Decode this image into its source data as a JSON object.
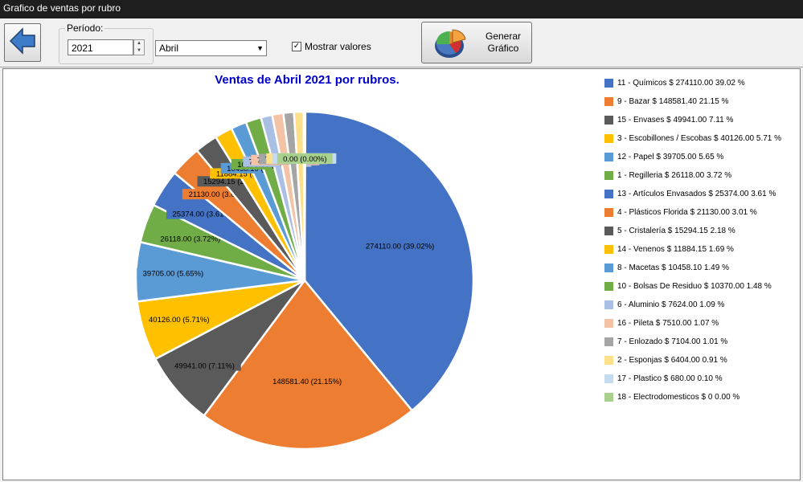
{
  "window": {
    "title": "Grafico de ventas por rubro"
  },
  "toolbar": {
    "period_label": "Período:",
    "year": "2021",
    "month": "Abril",
    "show_values_label": "Mostrar valores",
    "show_values_checked": true,
    "generate_label": "Generar\nGráfico"
  },
  "chart_data": {
    "type": "pie",
    "title": "Ventas de Abril 2021 por rubros.",
    "slices": [
      {
        "legend": "11 - Químicos  $ 274110.00  39.02 %",
        "value": 274110.0,
        "pct": 39.02,
        "label": "274110.00 (39.02%)",
        "color": "#4472c4"
      },
      {
        "legend": "9 - Bazar  $ 148581.40  21.15 %",
        "value": 148581.4,
        "pct": 21.15,
        "label": "148581.40 (21.15%)",
        "color": "#ed7d31"
      },
      {
        "legend": "15 - Envases  $ 49941.00  7.11 %",
        "value": 49941.0,
        "pct": 7.11,
        "label": "49941.00 (7.11%)",
        "color": "#5a5a5a"
      },
      {
        "legend": "3 - Escobillones / Escobas  $ 40126.00  5.71 %",
        "value": 40126.0,
        "pct": 5.71,
        "label": "40126.00 (5.71%)",
        "color": "#ffc000"
      },
      {
        "legend": "12 - Papel  $ 39705.00  5.65 %",
        "value": 39705.0,
        "pct": 5.65,
        "label": "39705.00 (5.65%)",
        "color": "#5b9bd5"
      },
      {
        "legend": "1 - Regilleria  $ 26118.00  3.72 %",
        "value": 26118.0,
        "pct": 3.72,
        "label": "26118.00 (3.72%)",
        "color": "#70ad47"
      },
      {
        "legend": "13 - Artículos Envasados  $ 25374.00  3.61 %",
        "value": 25374.0,
        "pct": 3.61,
        "label": "25374.00 (3.61%)",
        "color": "#4472c4"
      },
      {
        "legend": "4 - Plásticos Florida  $ 21130.00  3.01 %",
        "value": 21130.0,
        "pct": 3.01,
        "label": "21130.00 (3.01%)",
        "color": "#ed7d31"
      },
      {
        "legend": "5 - Cristalería  $ 15294.15  2.18 %",
        "value": 15294.15,
        "pct": 2.18,
        "label": "15294.15 (2.18%)",
        "color": "#5a5a5a"
      },
      {
        "legend": "14 - Venenos  $ 11884.15  1.69 %",
        "value": 11884.15,
        "pct": 1.69,
        "label": "11884.15 (1.69%)",
        "color": "#ffc000"
      },
      {
        "legend": "8 - Macetas  $ 10458.10  1.49 %",
        "value": 10458.1,
        "pct": 1.49,
        "label": "10458.10 (1.49%)",
        "color": "#5b9bd5"
      },
      {
        "legend": "10 - Bolsas De Residuo  $ 10370.00  1.48 %",
        "value": 10370.0,
        "pct": 1.48,
        "label": "10370.00 (1.48%)",
        "color": "#70ad47"
      },
      {
        "legend": "6 - Aluminio  $ 7624.00  1.09 %",
        "value": 7624.0,
        "pct": 1.09,
        "label": "7624.00 (1.09%)",
        "color": "#a9bfe3"
      },
      {
        "legend": "16 - Pileta  $ 7510.00  1.07 %",
        "value": 7510.0,
        "pct": 1.07,
        "label": "7510.00 (1.07%)",
        "color": "#f4c3a6"
      },
      {
        "legend": "7 - Enlozado  $ 7104.00  1.01 %",
        "value": 7104.0,
        "pct": 1.01,
        "label": "7104.00 (1.01%)",
        "color": "#a5a5a5"
      },
      {
        "legend": "2 - Esponjas  $ 6404.00  0.91 %",
        "value": 6404.0,
        "pct": 0.91,
        "label": "6404.00 (0.91%)",
        "color": "#ffe08a"
      },
      {
        "legend": "17 - Plastico  $ 680.00  0.10 %",
        "value": 680.0,
        "pct": 0.1,
        "label": "680.00 (0.10%)",
        "color": "#c5dbf0"
      },
      {
        "legend": "18 - Electrodomesticos  $ 0  0.00 %",
        "value": 0,
        "pct": 0.0,
        "label": "0.00 (0.00%)",
        "color": "#a9d18e"
      }
    ],
    "legend_position": "right",
    "labels_shown": true
  }
}
